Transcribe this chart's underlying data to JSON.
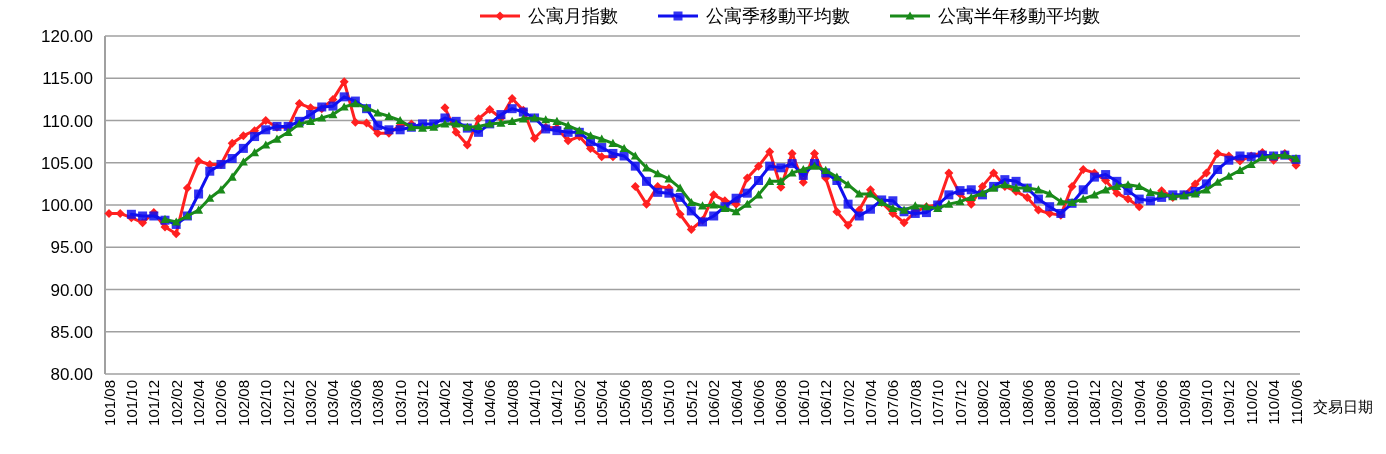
{
  "chart_data": {
    "type": "line",
    "categories": [
      "101/08",
      null,
      "101/10",
      null,
      "101/12",
      null,
      "102/02",
      null,
      "102/04",
      null,
      "102/06",
      null,
      "102/08",
      null,
      "102/10",
      null,
      "102/12",
      null,
      "103/02",
      null,
      "103/04",
      null,
      "103/06",
      null,
      "103/08",
      null,
      "103/10",
      null,
      "103/12",
      null,
      "104/02",
      null,
      "104/04",
      null,
      "104/06",
      null,
      "104/08",
      null,
      "104/10",
      null,
      "104/12",
      null,
      "105/02",
      null,
      "105/04",
      null,
      "105/06",
      null,
      "105/08",
      null,
      "105/10",
      null,
      "105/12",
      null,
      "106/02",
      null,
      "106/04",
      null,
      "106/06",
      null,
      "106/08",
      null,
      "106/10",
      null,
      "106/12",
      null,
      "107/02",
      null,
      "107/04",
      null,
      "107/06",
      null,
      "107/08",
      null,
      "107/10",
      null,
      "107/12",
      null,
      "108/02",
      null,
      "108/04",
      null,
      "108/06",
      null,
      "108/08",
      null,
      "108/10",
      null,
      "108/12",
      null,
      "109/02",
      null,
      "109/04",
      null,
      "109/06",
      null,
      "109/08",
      null,
      "109/10",
      null,
      "109/12",
      null,
      "110/02",
      null,
      "110/04",
      null,
      "110/06"
    ],
    "xlabel": "交易日期",
    "ylim": [
      80,
      120
    ],
    "yticks": [
      {
        "value": 80,
        "label": "80.00"
      },
      {
        "value": 85,
        "label": "85.00"
      },
      {
        "value": 90,
        "label": "90.00"
      },
      {
        "value": 95,
        "label": "95.00"
      },
      {
        "value": 100,
        "label": "100.00"
      },
      {
        "value": 105,
        "label": "105.00"
      },
      {
        "value": 110,
        "label": "110.00"
      },
      {
        "value": 115,
        "label": "115.00"
      },
      {
        "value": 120,
        "label": "120.00"
      }
    ],
    "grid": "y",
    "legend": "top",
    "series": [
      {
        "name": "公寓月指數",
        "color": "#ff2020",
        "marker": "diamond",
        "values": [
          99.0,
          99.0,
          98.5,
          97.9,
          99.1,
          97.4,
          96.6,
          102.0,
          105.2,
          104.8,
          104.8,
          107.3,
          108.2,
          108.8,
          110.0,
          109.2,
          109.2,
          112.0,
          111.5,
          111.4,
          112.5,
          114.6,
          109.8,
          109.7,
          108.5,
          108.5,
          109.4,
          109.6,
          null,
          null,
          111.5,
          108.6,
          107.1,
          110.2,
          111.3,
          110.3,
          112.6,
          111.2,
          107.9,
          109.2,
          109.1,
          107.6,
          108.1,
          106.7,
          105.7,
          105.7,
          null,
          102.2,
          100.1,
          102.2,
          102.0,
          98.9,
          97.1,
          98.2,
          101.2,
          100.5,
          100.1,
          103.2,
          104.6,
          106.3,
          102.1,
          106.1,
          102.7,
          106.1,
          103.2,
          99.2,
          97.6,
          99.4,
          101.8,
          100.3,
          99.0,
          97.9,
          99.2,
          99.8,
          100.0,
          103.8,
          101.3,
          100.1,
          102.2,
          103.8,
          102.2,
          101.6,
          100.9,
          99.4,
          99.0,
          98.8,
          102.2,
          104.2,
          103.8,
          102.9,
          101.4,
          100.7,
          99.8,
          null,
          101.7,
          100.9,
          101.2,
          102.5,
          103.8,
          106.1,
          105.8,
          105.2,
          105.8,
          106.2,
          105.3,
          106.1,
          104.7
        ]
      },
      {
        "name": "公寓季移動平均數",
        "color": "#1010ee",
        "marker": "square",
        "values": [
          null,
          null,
          98.9,
          98.7,
          98.7,
          98.2,
          97.7,
          98.7,
          101.3,
          104.0,
          104.8,
          105.5,
          106.7,
          108.1,
          108.9,
          109.3,
          109.3,
          109.9,
          110.7,
          111.6,
          111.7,
          112.8,
          112.3,
          111.4,
          109.4,
          108.9,
          108.9,
          109.2,
          109.6,
          109.6,
          110.3,
          109.9,
          109.1,
          108.6,
          109.6,
          110.7,
          111.4,
          111.0,
          110.3,
          109.0,
          108.8,
          108.6,
          108.6,
          107.5,
          106.8,
          106.1,
          105.8,
          104.6,
          102.8,
          101.5,
          101.4,
          100.9,
          99.3,
          98.0,
          98.7,
          99.8,
          100.8,
          101.4,
          102.9,
          104.6,
          104.4,
          104.9,
          103.5,
          104.9,
          103.8,
          102.9,
          100.1,
          98.7,
          99.5,
          100.6,
          100.5,
          99.2,
          99.0,
          99.1,
          100.0,
          101.2,
          101.7,
          101.8,
          101.2,
          102.2,
          103.0,
          102.8,
          102.0,
          100.7,
          99.8,
          99.0,
          100.2,
          101.8,
          103.3,
          103.6,
          102.8,
          101.7,
          100.7,
          100.5,
          100.9,
          101.2,
          101.2,
          101.6,
          102.5,
          104.2,
          105.3,
          105.8,
          105.7,
          105.9,
          105.8,
          105.9,
          105.4
        ]
      },
      {
        "name": "公寓半年移動平均數",
        "color": "#1a8a1a",
        "marker": "triangle",
        "values": [
          null,
          null,
          null,
          null,
          null,
          98.3,
          98.0,
          98.7,
          99.4,
          100.8,
          101.8,
          103.3,
          105.1,
          106.2,
          107.1,
          107.8,
          108.6,
          109.6,
          109.9,
          110.3,
          110.7,
          111.6,
          112.0,
          111.5,
          110.9,
          110.5,
          110.0,
          109.2,
          109.1,
          109.2,
          109.6,
          109.6,
          109.2,
          109.3,
          109.6,
          109.7,
          109.9,
          110.2,
          110.3,
          110.1,
          109.9,
          109.4,
          108.8,
          108.2,
          107.8,
          107.3,
          106.7,
          105.8,
          104.4,
          103.7,
          103.1,
          102.0,
          100.3,
          99.9,
          100.0,
          99.6,
          99.2,
          100.1,
          101.2,
          102.8,
          102.8,
          103.8,
          104.2,
          104.6,
          104.1,
          103.3,
          102.4,
          101.3,
          101.3,
          100.3,
          99.6,
          99.4,
          99.9,
          99.8,
          99.6,
          100.1,
          100.4,
          100.9,
          101.4,
          102.0,
          102.4,
          102.0,
          102.0,
          101.8,
          101.3,
          100.4,
          100.3,
          100.7,
          101.2,
          101.8,
          102.2,
          102.4,
          102.2,
          101.5,
          101.3,
          101.0,
          101.1,
          101.3,
          101.8,
          102.7,
          103.4,
          104.1,
          104.8,
          105.6,
          105.8,
          105.9,
          105.5
        ]
      }
    ]
  }
}
